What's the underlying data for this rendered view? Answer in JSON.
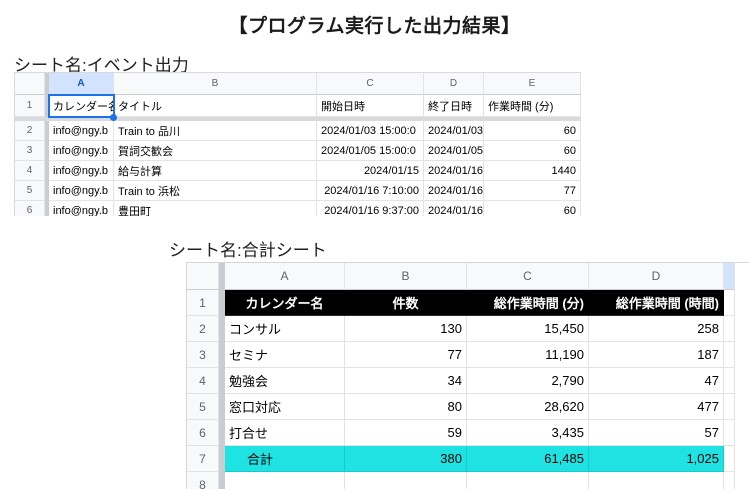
{
  "page": {
    "title": "【プログラム実行した出力結果】"
  },
  "colors": {
    "selection_blue": "#1a73e8",
    "selected_column_header_bg": "#d3e3fd",
    "header_gray_bg": "#f8f9fa",
    "table2_header_bg": "#000000",
    "table2_header_text": "#ffffff",
    "total_row_cyan": "#1fe3e3"
  },
  "sheet1": {
    "label": "シート名:イベント出力",
    "selection": {
      "cell": "A1"
    },
    "columns": [
      "A",
      "B",
      "C",
      "D",
      "E"
    ],
    "header_row_num": "1",
    "headers": [
      "カレンダー名",
      "タイトル",
      "開始日時",
      "終了日時",
      "作業時間 (分)"
    ],
    "rows": [
      {
        "num": "2",
        "calendar": "info@ngy.b",
        "title": "Train to 品川",
        "start": "2024/01/03 15:00:0",
        "end": "2024/01/03",
        "minutes": "60"
      },
      {
        "num": "3",
        "calendar": "info@ngy.b",
        "title": "賀詞交歓会",
        "start": "2024/01/05 15:00:0",
        "end": "2024/01/05",
        "minutes": "60"
      },
      {
        "num": "4",
        "calendar": "info@ngy.b",
        "title": "給与計算",
        "start": "2024/01/15",
        "end": "2024/01/16",
        "minutes": "1440"
      },
      {
        "num": "5",
        "calendar": "info@ngy.b",
        "title": "Train to 浜松",
        "start": "2024/01/16 7:10:00",
        "end": "2024/01/16",
        "minutes": "77"
      },
      {
        "num": "6",
        "calendar": "info@ngy.b",
        "title": "豊田町",
        "start": "2024/01/16 9:37:00",
        "end": "2024/01/16",
        "minutes": "60"
      }
    ]
  },
  "sheet2": {
    "label": "シート名:合計シート",
    "columns": [
      "A",
      "B",
      "C",
      "D"
    ],
    "header_row_num": "1",
    "headers": [
      "カレンダー名",
      "件数",
      "総作業時間 (分)",
      "総作業時間 (時間)"
    ],
    "rows": [
      {
        "num": "2",
        "name": "コンサル",
        "count": "130",
        "minutes": "15,450",
        "hours": "258"
      },
      {
        "num": "3",
        "name": "セミナ",
        "count": "77",
        "minutes": "11,190",
        "hours": "187"
      },
      {
        "num": "4",
        "name": "勉強会",
        "count": "34",
        "minutes": "2,790",
        "hours": "47"
      },
      {
        "num": "5",
        "name": "窓口対応",
        "count": "80",
        "minutes": "28,620",
        "hours": "477"
      },
      {
        "num": "6",
        "name": "打合せ",
        "count": "59",
        "minutes": "3,435",
        "hours": "57"
      }
    ],
    "total_row": {
      "num": "7",
      "name": "合計",
      "count": "380",
      "minutes": "61,485",
      "hours": "1,025"
    },
    "next_row_num": "8"
  }
}
